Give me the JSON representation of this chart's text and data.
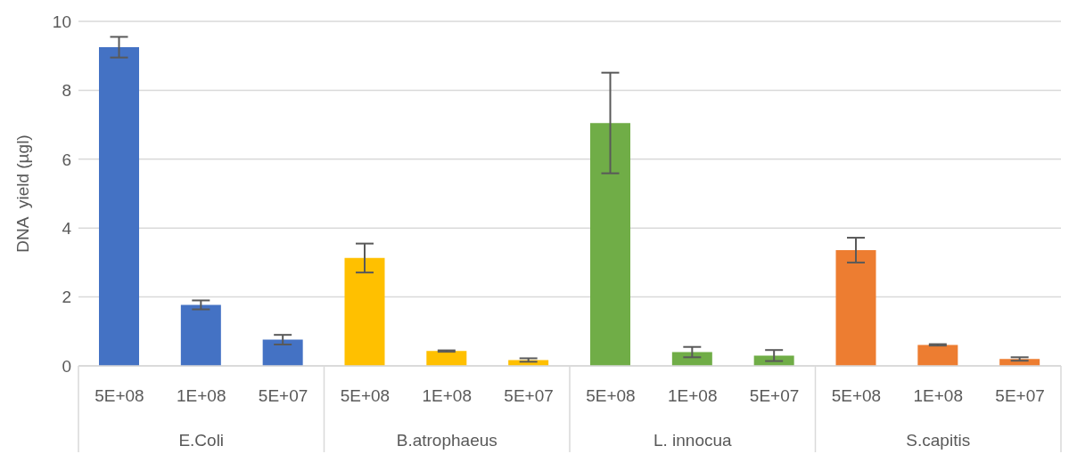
{
  "chart_data": {
    "type": "bar",
    "ylabel": "DNA  yield (µgl)",
    "categories": [
      "5E+08",
      "1E+08",
      "5E+07",
      "5E+08",
      "1E+08",
      "5E+07",
      "5E+08",
      "1E+08",
      "5E+07",
      "5E+08",
      "1E+08",
      "5E+07"
    ],
    "values": [
      9.25,
      1.77,
      0.76,
      3.13,
      0.43,
      0.17,
      7.05,
      0.4,
      0.3,
      3.36,
      0.61,
      0.2
    ],
    "errors": [
      0.3,
      0.13,
      0.14,
      0.42,
      0.02,
      0.05,
      1.46,
      0.15,
      0.16,
      0.36,
      0.02,
      0.05
    ],
    "colors": [
      "#4472c4",
      "#4472c4",
      "#4472c4",
      "#ffc000",
      "#ffc000",
      "#ffc000",
      "#70ad47",
      "#70ad47",
      "#70ad47",
      "#ed7d31",
      "#ed7d31",
      "#ed7d31"
    ],
    "annotations": [
      "E.Coli",
      "B.atrophaeus",
      "L. innocua",
      "S.capitis"
    ],
    "ylim": [
      0,
      10
    ],
    "yticks": [
      0,
      2,
      4,
      6,
      8,
      10
    ],
    "grid": "y"
  }
}
